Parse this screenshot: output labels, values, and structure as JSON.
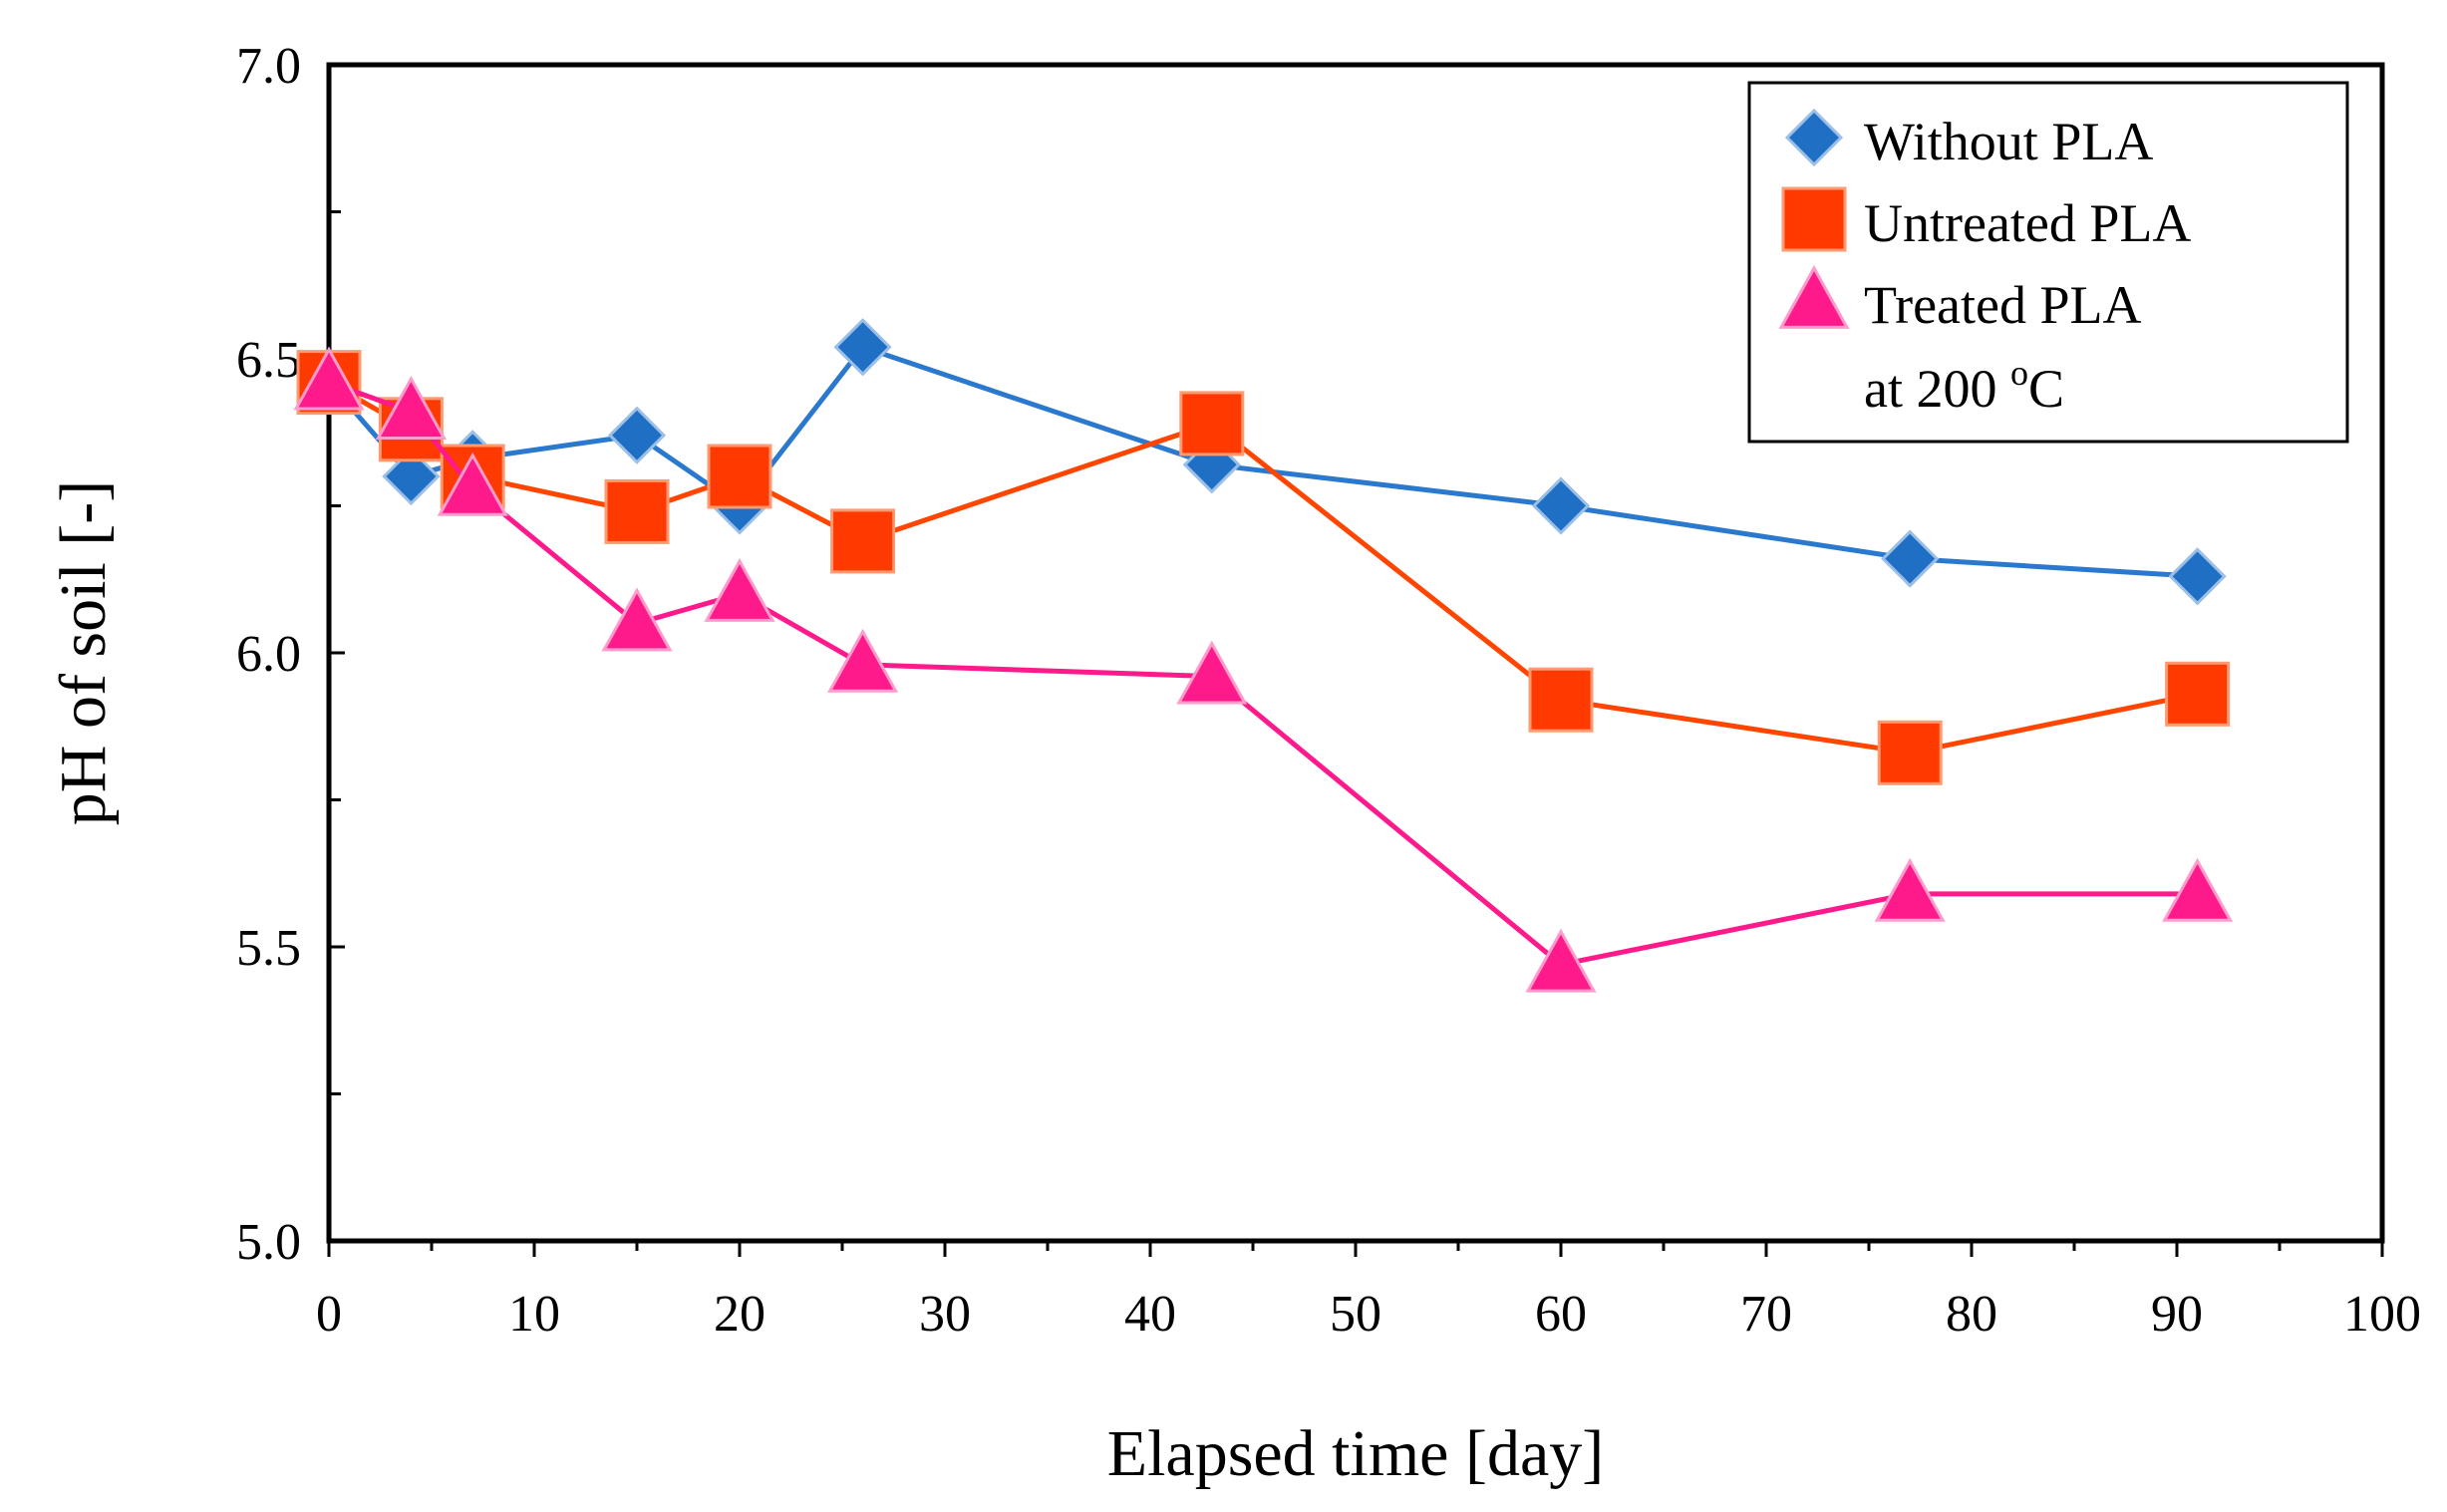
{
  "chart_data": {
    "type": "line",
    "xlabel": "Elapsed time [day]",
    "ylabel": "pH of soil [-]",
    "xlim": [
      0,
      100
    ],
    "ylim": [
      5.0,
      7.0
    ],
    "xticks": [
      0,
      10,
      20,
      30,
      40,
      50,
      60,
      70,
      80,
      90,
      100
    ],
    "xtick_labels": [
      "0",
      "10",
      "20",
      "30",
      "40",
      "50",
      "60",
      "70",
      "80",
      "90",
      "100"
    ],
    "yticks": [
      5.0,
      5.5,
      6.0,
      6.5,
      7.0
    ],
    "ytick_labels": [
      "5.0",
      "5.5",
      "6.0",
      "6.5",
      "7.0"
    ],
    "grid": false,
    "legend_position": "top-right",
    "series": [
      {
        "name": "Without PLA",
        "marker": "diamond",
        "color": "#1f6fc4",
        "line_color": "#2a79cf",
        "x": [
          0,
          4,
          7,
          15,
          20,
          26,
          43,
          60,
          77,
          91
        ],
        "y": [
          6.46,
          6.3,
          6.33,
          6.37,
          6.25,
          6.52,
          6.32,
          6.25,
          6.16,
          6.13
        ]
      },
      {
        "name": "Untreated PLA",
        "marker": "square",
        "color": "#ff3a00",
        "line_color": "#ff4500",
        "x": [
          0,
          4,
          7,
          15,
          20,
          26,
          43,
          60,
          77,
          91
        ],
        "y": [
          6.46,
          6.38,
          6.3,
          6.24,
          6.3,
          6.19,
          6.39,
          5.92,
          5.83,
          5.93
        ]
      },
      {
        "name": "Treated PLA at 200 °C",
        "marker": "triangle",
        "color": "#ff1a8c",
        "line_color": "#ff1a8c",
        "x": [
          0,
          4,
          7,
          15,
          20,
          26,
          43,
          60,
          77,
          91
        ],
        "y": [
          6.46,
          6.41,
          6.28,
          6.05,
          6.1,
          5.98,
          5.96,
          5.47,
          5.59,
          5.59
        ]
      }
    ],
    "legend": {
      "entries": [
        {
          "text": "Without PLA",
          "series": 0
        },
        {
          "text": "Untreated PLA",
          "series": 1
        },
        {
          "text": "Treated PLA",
          "series": 2
        }
      ],
      "extra_line": {
        "prefix": "at 200 ",
        "superscript": "o",
        "suffix": "C"
      }
    }
  }
}
